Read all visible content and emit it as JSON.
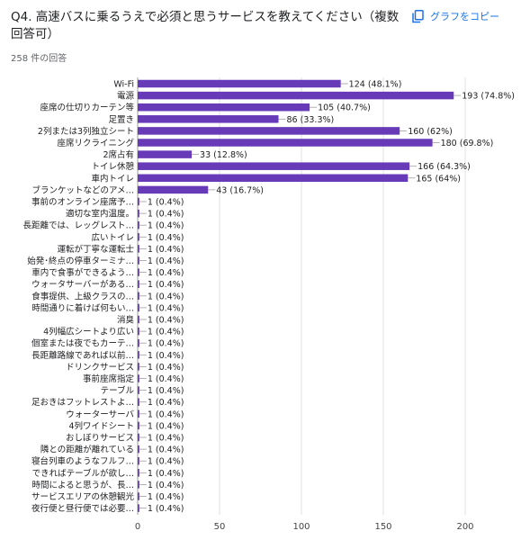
{
  "header": {
    "question": "Q4. 高速バスに乗るうえで必須と思うサービスを教えてください（複数回答可）",
    "response_count": "258 件の回答",
    "copy_label": "グラフをコピー",
    "copy_icon": "copy-icon"
  },
  "colors": {
    "bar": "#673ab7",
    "accent": "#1a73e8",
    "grid": "#e0e0e0"
  },
  "chart_data": {
    "type": "bar",
    "orientation": "horizontal",
    "title": "",
    "xlabel": "",
    "ylabel": "",
    "xlim": [
      0,
      200
    ],
    "x_ticks": [
      "0",
      "50",
      "100",
      "150",
      "200"
    ],
    "grid": true,
    "categories": [
      "Wi-Fi",
      "電源",
      "座席の仕切りカーテン等",
      "足置き",
      "2列または3列独立シート",
      "座席リクライニング",
      "2席占有",
      "トイレ休憩",
      "車内トイレ",
      "ブランケットなどのアメ…",
      "事前のオンライン座席予…",
      "適切な室内温度。",
      "長距離では、レッグレスト…",
      "広いトイレ",
      "運転が丁寧な運転士",
      "始発･終点の停車ターミナ…",
      "車内で食事ができるよう…",
      "ウォータサーバーがある…",
      "食事提供、上級クラスの…",
      "時間通りに着けば何もい…",
      "消臭",
      "4列幅広シートより広い",
      "個室または夜でもカーテ…",
      "長距離路線であれば以前…",
      "ドリンクサービス",
      "事前座席指定",
      "テーブル",
      "足おきはフットレストよ…",
      "ウォーターサーバ",
      "4列ワイドシート",
      "おしぼりサービス",
      "隣との距離が離れている",
      "寝台列車のようなフルフ…",
      "できればテーブルが欲し…",
      "時間によると思うが、長…",
      "サービスエリアの休憩観光",
      "夜行便と昼行便では必要…"
    ],
    "values": [
      124,
      193,
      105,
      86,
      160,
      180,
      33,
      166,
      165,
      43,
      1,
      1,
      1,
      1,
      1,
      1,
      1,
      1,
      1,
      1,
      1,
      1,
      1,
      1,
      1,
      1,
      1,
      1,
      1,
      1,
      1,
      1,
      1,
      1,
      1,
      1,
      1
    ],
    "data_labels": [
      "124 (48.1%)",
      "193 (74.8%)",
      "105 (40.7%)",
      "86 (33.3%)",
      "160 (62%)",
      "180 (69.8%)",
      "33 (12.8%)",
      "166 (64.3%)",
      "165 (64%)",
      "43 (16.7%)",
      "1 (0.4%)",
      "1 (0.4%)",
      "1 (0.4%)",
      "1 (0.4%)",
      "1 (0.4%)",
      "1 (0.4%)",
      "1 (0.4%)",
      "1 (0.4%)",
      "1 (0.4%)",
      "1 (0.4%)",
      "1 (0.4%)",
      "1 (0.4%)",
      "1 (0.4%)",
      "1 (0.4%)",
      "1 (0.4%)",
      "1 (0.4%)",
      "1 (0.4%)",
      "1 (0.4%)",
      "1 (0.4%)",
      "1 (0.4%)",
      "1 (0.4%)",
      "1 (0.4%)",
      "1 (0.4%)",
      "1 (0.4%)",
      "1 (0.4%)",
      "1 (0.4%)",
      "1 (0.4%)"
    ]
  }
}
